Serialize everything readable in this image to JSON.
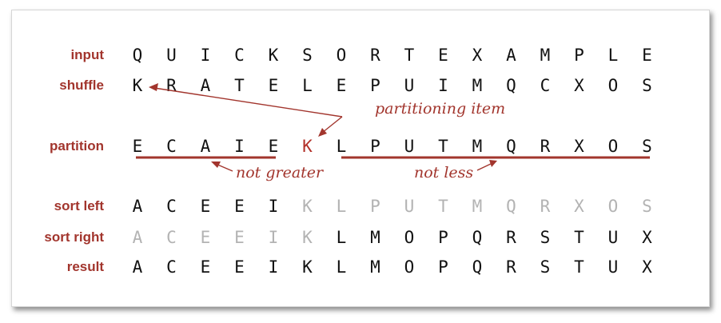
{
  "colors": {
    "accent": "#a2352d",
    "key": "#b3312a",
    "muted": "#b3b3b3",
    "text": "#111111"
  },
  "rows": [
    {
      "label": "input",
      "letters": [
        "Q",
        "U",
        "I",
        "C",
        "K",
        "S",
        "O",
        "R",
        "T",
        "E",
        "X",
        "A",
        "M",
        "P",
        "L",
        "E"
      ],
      "gray": [],
      "red": []
    },
    {
      "label": "shuffle",
      "letters": [
        "K",
        "R",
        "A",
        "T",
        "E",
        "L",
        "E",
        "P",
        "U",
        "I",
        "M",
        "Q",
        "C",
        "X",
        "O",
        "S"
      ],
      "gray": [],
      "red": []
    },
    {
      "label": "partition",
      "letters": [
        "E",
        "C",
        "A",
        "I",
        "E",
        "K",
        "L",
        "P",
        "U",
        "T",
        "M",
        "Q",
        "R",
        "X",
        "O",
        "S"
      ],
      "gray": [],
      "red": [
        5
      ]
    },
    {
      "label": "sort left",
      "letters": [
        "A",
        "C",
        "E",
        "E",
        "I",
        "K",
        "L",
        "P",
        "U",
        "T",
        "M",
        "Q",
        "R",
        "X",
        "O",
        "S"
      ],
      "gray": [
        5,
        6,
        7,
        8,
        9,
        10,
        11,
        12,
        13,
        14,
        15
      ],
      "red": []
    },
    {
      "label": "sort right",
      "letters": [
        "A",
        "C",
        "E",
        "E",
        "I",
        "K",
        "L",
        "M",
        "O",
        "P",
        "Q",
        "R",
        "S",
        "T",
        "U",
        "X"
      ],
      "gray": [
        0,
        1,
        2,
        3,
        4,
        5
      ],
      "red": []
    },
    {
      "label": "result",
      "letters": [
        "A",
        "C",
        "E",
        "E",
        "I",
        "K",
        "L",
        "M",
        "O",
        "P",
        "Q",
        "R",
        "S",
        "T",
        "U",
        "X"
      ],
      "gray": [],
      "red": []
    }
  ],
  "annotations": {
    "partitioning_item": "partitioning item",
    "not_greater": "not greater",
    "not_less": "not less"
  }
}
